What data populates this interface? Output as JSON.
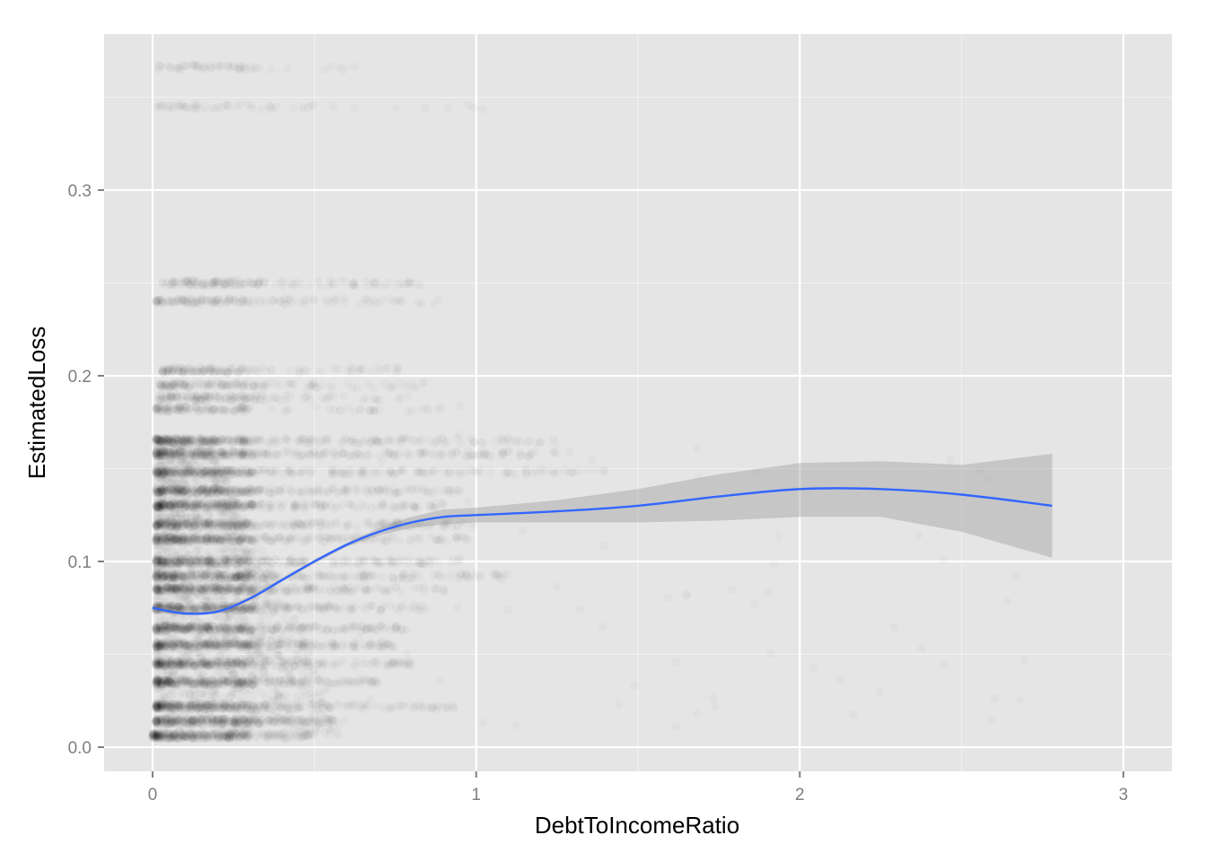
{
  "chart_data": {
    "type": "scatter",
    "title": "",
    "xlabel": "DebtToIncomeRatio",
    "ylabel": "EstimatedLoss",
    "xlim": [
      -0.15,
      3.15
    ],
    "ylim": [
      -0.013,
      0.384
    ],
    "x_ticks": [
      0,
      1,
      2,
      3
    ],
    "x_tick_labels": [
      "0",
      "1",
      "2",
      "3"
    ],
    "y_ticks": [
      0.0,
      0.1,
      0.2,
      0.3
    ],
    "y_tick_labels": [
      "0.0",
      "0.1",
      "0.2",
      "0.3"
    ],
    "grid": true,
    "legend": "none",
    "point_color": "#000000",
    "point_alpha": 0.02,
    "smooth_color": "#3366ff",
    "band_color": "#999999",
    "panel_color": "#e5e5e5",
    "point_bands": [
      {
        "y": 0.366,
        "x_min": 0.02,
        "x_max": 0.63
      },
      {
        "y": 0.345,
        "x_min": 0.01,
        "x_max": 1.02
      },
      {
        "y": 0.25,
        "x_min": 0.03,
        "x_max": 0.87
      },
      {
        "y": 0.24,
        "x_min": 0.01,
        "x_max": 0.91
      },
      {
        "y": 0.203,
        "x_min": 0.03,
        "x_max": 0.78
      },
      {
        "y": 0.195,
        "x_min": 0.02,
        "x_max": 0.85
      },
      {
        "y": 0.188,
        "x_min": 0.02,
        "x_max": 0.8
      },
      {
        "y": 0.182,
        "x_min": 0.01,
        "x_max": 1.0
      },
      {
        "y": 0.165,
        "x_min": 0.01,
        "x_max": 1.25
      },
      {
        "y": 0.158,
        "x_min": 0.01,
        "x_max": 1.3
      },
      {
        "y": 0.148,
        "x_min": 0.01,
        "x_max": 1.4
      },
      {
        "y": 0.138,
        "x_min": 0.01,
        "x_max": 0.95
      },
      {
        "y": 0.13,
        "x_min": 0.01,
        "x_max": 0.9
      },
      {
        "y": 0.12,
        "x_min": 0.01,
        "x_max": 1.0
      },
      {
        "y": 0.112,
        "x_min": 0.01,
        "x_max": 0.98
      },
      {
        "y": 0.1,
        "x_min": 0.01,
        "x_max": 0.95
      },
      {
        "y": 0.092,
        "x_min": 0.01,
        "x_max": 1.1
      },
      {
        "y": 0.085,
        "x_min": 0.01,
        "x_max": 0.9
      },
      {
        "y": 0.075,
        "x_min": 0.01,
        "x_max": 0.85
      },
      {
        "y": 0.064,
        "x_min": 0.01,
        "x_max": 0.8
      },
      {
        "y": 0.055,
        "x_min": 0.01,
        "x_max": 0.75
      },
      {
        "y": 0.045,
        "x_min": 0.01,
        "x_max": 0.8
      },
      {
        "y": 0.035,
        "x_min": 0.01,
        "x_max": 0.7
      },
      {
        "y": 0.022,
        "x_min": 0.01,
        "x_max": 0.95
      },
      {
        "y": 0.014,
        "x_min": 0.01,
        "x_max": 0.6
      },
      {
        "y": 0.006,
        "x_min": 0.0,
        "x_max": 0.5
      }
    ],
    "smooth": {
      "x": [
        0.0,
        0.1,
        0.2,
        0.3,
        0.4,
        0.5,
        0.6,
        0.7,
        0.8,
        0.9,
        1.0,
        1.25,
        1.5,
        1.75,
        2.0,
        2.25,
        2.5,
        2.78
      ],
      "y": [
        0.075,
        0.072,
        0.073,
        0.08,
        0.09,
        0.1,
        0.109,
        0.116,
        0.121,
        0.124,
        0.125,
        0.127,
        0.13,
        0.135,
        0.139,
        0.139,
        0.136,
        0.13
      ],
      "lower": [
        0.073,
        0.071,
        0.072,
        0.079,
        0.089,
        0.099,
        0.108,
        0.114,
        0.118,
        0.12,
        0.121,
        0.121,
        0.121,
        0.122,
        0.124,
        0.124,
        0.116,
        0.102
      ],
      "upper": [
        0.077,
        0.073,
        0.074,
        0.081,
        0.091,
        0.101,
        0.11,
        0.118,
        0.124,
        0.128,
        0.129,
        0.133,
        0.139,
        0.147,
        0.153,
        0.154,
        0.152,
        0.158
      ]
    }
  }
}
